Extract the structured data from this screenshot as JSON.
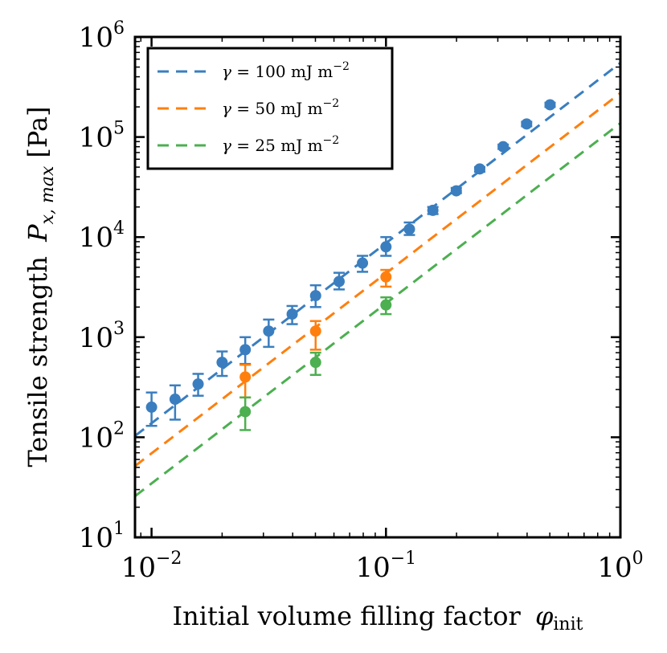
{
  "chart_data": {
    "type": "scatter",
    "title": "",
    "xlabel": "Initial volume filling factor",
    "xlabel_symbol": "φ",
    "xlabel_subscript": "init",
    "ylabel": "Tensile strength",
    "ylabel_symbol": "P",
    "ylabel_subscript": "x, max",
    "ylabel_unit": "[Pa]",
    "x_scale": "log",
    "y_scale": "log",
    "xlim": [
      0.0085,
      1.0
    ],
    "ylim": [
      10,
      1000000
    ],
    "x_ticks": [
      {
        "base": "10",
        "exp": "−2"
      },
      {
        "base": "10",
        "exp": "−1"
      },
      {
        "base": "10",
        "exp": "0"
      }
    ],
    "y_ticks": [
      {
        "base": "10",
        "exp": "1"
      },
      {
        "base": "10",
        "exp": "2"
      },
      {
        "base": "10",
        "exp": "3"
      },
      {
        "base": "10",
        "exp": "4"
      },
      {
        "base": "10",
        "exp": "5"
      },
      {
        "base": "10",
        "exp": "6"
      }
    ],
    "grid": false,
    "legend_position": "top-left",
    "series": [
      {
        "name": "γ = 100 mJ m⁻²",
        "legend_prefix": "γ = 100 mJ m",
        "legend_exp": "−2",
        "color": "#3a7ebf",
        "fit": {
          "style": "dashed",
          "coef": 550000,
          "exponent": 1.8
        },
        "points": [
          {
            "x": 0.01,
            "y": 200,
            "lo": 130,
            "hi": 280
          },
          {
            "x": 0.0126,
            "y": 240,
            "lo": 150,
            "hi": 330
          },
          {
            "x": 0.0158,
            "y": 340,
            "lo": 260,
            "hi": 430
          },
          {
            "x": 0.02,
            "y": 560,
            "lo": 410,
            "hi": 720
          },
          {
            "x": 0.0251,
            "y": 750,
            "lo": 540,
            "hi": 1000
          },
          {
            "x": 0.0316,
            "y": 1150,
            "lo": 800,
            "hi": 1500
          },
          {
            "x": 0.0398,
            "y": 1700,
            "lo": 1350,
            "hi": 2050
          },
          {
            "x": 0.0501,
            "y": 2600,
            "lo": 2000,
            "hi": 3300
          },
          {
            "x": 0.0631,
            "y": 3600,
            "lo": 3000,
            "hi": 4400
          },
          {
            "x": 0.0794,
            "y": 5500,
            "lo": 4500,
            "hi": 6500
          },
          {
            "x": 0.1,
            "y": 8000,
            "lo": 6500,
            "hi": 10000
          },
          {
            "x": 0.1259,
            "y": 12000,
            "lo": 10500,
            "hi": 14000
          },
          {
            "x": 0.1585,
            "y": 18500,
            "lo": 17000,
            "hi": 20000
          },
          {
            "x": 0.1995,
            "y": 29000,
            "lo": 27500,
            "hi": 31000
          },
          {
            "x": 0.2512,
            "y": 48000,
            "lo": 45000,
            "hi": 50000
          },
          {
            "x": 0.3162,
            "y": 80000,
            "lo": 76000,
            "hi": 84000
          },
          {
            "x": 0.3981,
            "y": 135000,
            "lo": 128000,
            "hi": 142000
          },
          {
            "x": 0.5012,
            "y": 210000,
            "lo": 200000,
            "hi": 220000
          }
        ]
      },
      {
        "name": "γ = 50 mJ m⁻²",
        "legend_prefix": "γ = 50 mJ m",
        "legend_exp": "−2",
        "color": "#ff7f0e",
        "fit": {
          "style": "dashed",
          "coef": 275000,
          "exponent": 1.8
        },
        "points": [
          {
            "x": 0.0251,
            "y": 400,
            "lo": 250,
            "hi": 530
          },
          {
            "x": 0.0501,
            "y": 1150,
            "lo": 750,
            "hi": 1450
          },
          {
            "x": 0.1,
            "y": 4000,
            "lo": 3200,
            "hi": 4700
          }
        ]
      },
      {
        "name": "γ = 25 mJ m⁻²",
        "legend_prefix": "γ = 25 mJ m",
        "legend_exp": "−2",
        "color": "#4caf50",
        "fit": {
          "style": "dashed",
          "coef": 137500,
          "exponent": 1.8
        },
        "points": [
          {
            "x": 0.0251,
            "y": 180,
            "lo": 118,
            "hi": 250
          },
          {
            "x": 0.0501,
            "y": 560,
            "lo": 420,
            "hi": 700
          },
          {
            "x": 0.1,
            "y": 2100,
            "lo": 1700,
            "hi": 2500
          }
        ]
      }
    ]
  }
}
